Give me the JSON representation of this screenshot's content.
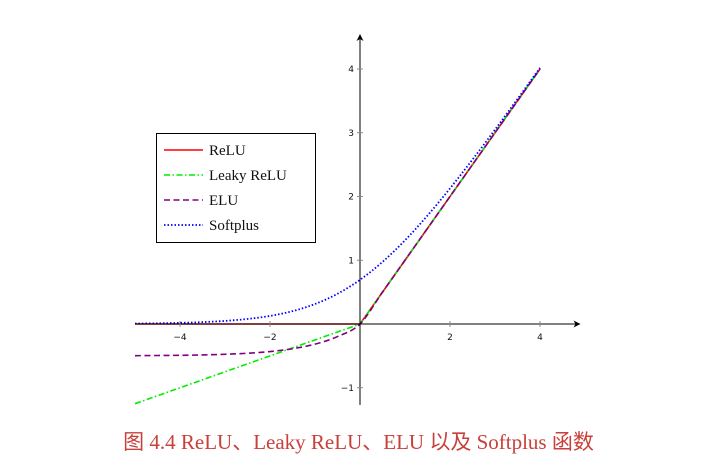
{
  "caption": "图 4.4   ReLU、Leaky ReLU、ELU 以及 Softplus 函数",
  "chart_data": {
    "type": "line",
    "title": "",
    "xlabel": "",
    "ylabel": "",
    "xlim": [
      -5,
      4.9
    ],
    "ylim": [
      -1.27,
      4.55
    ],
    "grid": false,
    "legend_placement": "center-left",
    "xticks": [
      -4,
      -2,
      2,
      4
    ],
    "xtick_labels": [
      "−4",
      "−2",
      "2",
      "4"
    ],
    "yticks": [
      -1,
      1,
      2,
      3,
      4
    ],
    "ytick_labels": [
      "−1",
      "1",
      "2",
      "3",
      "4"
    ],
    "x": [
      -5,
      -4.5,
      -4,
      -3.5,
      -3,
      -2.5,
      -2,
      -1.5,
      -1,
      -0.5,
      0,
      0.5,
      1,
      1.5,
      2,
      2.5,
      3,
      3.5,
      4
    ],
    "series": [
      {
        "name": "ReLU",
        "color": "#ff0000",
        "style": "solid",
        "smooth": false,
        "values": [
          0,
          0,
          0,
          0,
          0,
          0,
          0,
          0,
          0,
          0,
          0,
          0.5,
          1,
          1.5,
          2,
          2.5,
          3,
          3.5,
          4
        ]
      },
      {
        "name": "Leaky ReLU",
        "color": "#00ee00",
        "style": "dashdot",
        "smooth": false,
        "values": [
          -1.25,
          -1.125,
          -1,
          -0.875,
          -0.75,
          -0.625,
          -0.5,
          -0.375,
          -0.25,
          -0.125,
          0,
          0.5,
          1,
          1.5,
          2,
          2.5,
          3,
          3.5,
          4
        ]
      },
      {
        "name": "ELU",
        "color": "#800080",
        "style": "dashed",
        "smooth": true,
        "values": [
          -0.497,
          -0.494,
          -0.491,
          -0.485,
          -0.475,
          -0.459,
          -0.432,
          -0.388,
          -0.316,
          -0.197,
          0,
          0.5,
          1,
          1.5,
          2,
          2.5,
          3,
          3.5,
          4
        ]
      },
      {
        "name": "Softplus",
        "color": "#0000ff",
        "style": "dotted",
        "smooth": true,
        "values": [
          0.0067,
          0.011,
          0.0181,
          0.0297,
          0.0486,
          0.0789,
          0.1269,
          0.2014,
          0.3133,
          0.4741,
          0.6931,
          0.9741,
          1.3133,
          1.7014,
          2.1269,
          2.5789,
          3.0486,
          3.5297,
          4.0181
        ]
      }
    ]
  }
}
